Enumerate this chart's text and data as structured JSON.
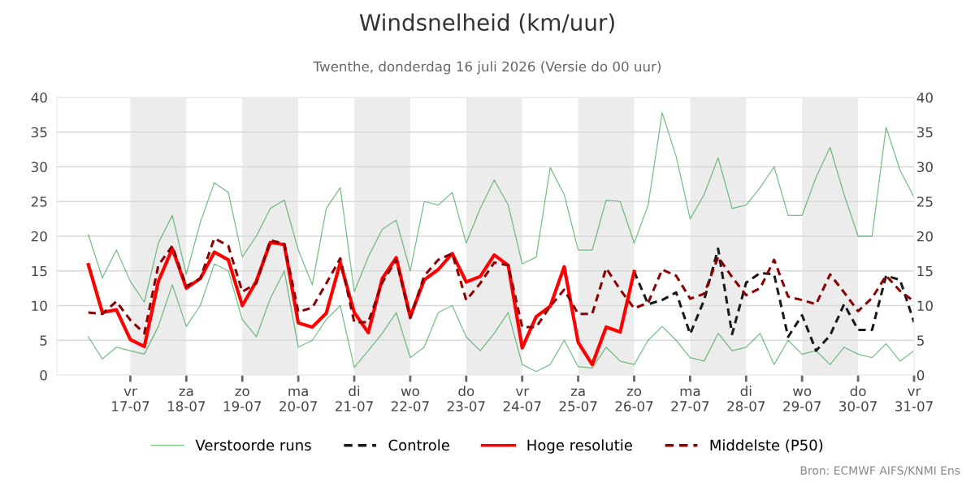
{
  "chart_data": {
    "type": "line",
    "title": "Windsnelheid (km/uur)",
    "subtitle": "Twenthe, donderdag 16 juli 2026 (Versie do 00 uur)",
    "x": [
      "2026-07-16T06:00",
      "2026-07-16T12:00",
      "2026-07-16T18:00",
      "2026-07-17T00:00",
      "2026-07-17T06:00",
      "2026-07-17T12:00",
      "2026-07-17T18:00",
      "2026-07-18T00:00",
      "2026-07-18T06:00",
      "2026-07-18T12:00",
      "2026-07-18T18:00",
      "2026-07-19T00:00",
      "2026-07-19T06:00",
      "2026-07-19T12:00",
      "2026-07-19T18:00",
      "2026-07-20T00:00",
      "2026-07-20T06:00",
      "2026-07-20T12:00",
      "2026-07-20T18:00",
      "2026-07-21T00:00",
      "2026-07-21T06:00",
      "2026-07-21T12:00",
      "2026-07-21T18:00",
      "2026-07-22T00:00",
      "2026-07-22T06:00",
      "2026-07-22T12:00",
      "2026-07-22T18:00",
      "2026-07-23T00:00",
      "2026-07-23T06:00",
      "2026-07-23T12:00",
      "2026-07-23T18:00",
      "2026-07-24T00:00",
      "2026-07-24T06:00",
      "2026-07-24T12:00",
      "2026-07-24T18:00",
      "2026-07-25T00:00",
      "2026-07-25T06:00",
      "2026-07-25T12:00",
      "2026-07-25T18:00",
      "2026-07-26T00:00",
      "2026-07-26T06:00",
      "2026-07-26T12:00",
      "2026-07-26T18:00",
      "2026-07-27T00:00",
      "2026-07-27T06:00",
      "2026-07-27T12:00",
      "2026-07-27T18:00",
      "2026-07-28T00:00",
      "2026-07-28T06:00",
      "2026-07-28T12:00",
      "2026-07-28T18:00",
      "2026-07-29T00:00",
      "2026-07-29T06:00",
      "2026-07-29T12:00",
      "2026-07-29T18:00",
      "2026-07-30T00:00",
      "2026-07-30T06:00",
      "2026-07-30T12:00",
      "2026-07-30T18:00",
      "2026-07-31T00:00"
    ],
    "series": [
      {
        "name": "Verstoorde runs",
        "color": "#2e9e44",
        "line_style": "solid",
        "values": [
          20.2,
          14,
          18,
          13.5,
          10.5,
          19,
          23,
          14.5,
          22,
          27.7,
          26.3,
          17,
          20,
          24,
          25.2,
          18,
          13,
          24,
          27,
          12,
          17,
          21,
          22.3,
          15,
          25,
          24.5,
          26.3,
          19,
          24,
          28.1,
          24.5,
          16,
          17,
          29.9,
          26,
          18,
          18,
          25.2,
          25,
          19,
          24.5,
          37.8,
          31.5,
          22.5,
          26,
          31.3,
          24,
          24.5,
          27,
          30,
          23,
          23,
          28.5,
          32.8,
          26,
          20,
          20,
          35.7,
          29.5,
          25.6
        ]
      },
      {
        "color": "#2e9e44",
        "line_style": "solid",
        "values": [
          5.5,
          2.3,
          4,
          3.5,
          3,
          7,
          13,
          7,
          10,
          16,
          15,
          8,
          5.5,
          11,
          15,
          4,
          5,
          8,
          10,
          1.1,
          3.5,
          6,
          9,
          2.5,
          4,
          9,
          10,
          5.5,
          3.5,
          6,
          9,
          1.5,
          0.5,
          1.5,
          5,
          1.2,
          1,
          4,
          2,
          1.5,
          5,
          7,
          5,
          2.5,
          2,
          6,
          3.5,
          4,
          6,
          1.5,
          5,
          3,
          3.5,
          1.5,
          4,
          3,
          2.5,
          4.5,
          2,
          3.5
        ]
      },
      {
        "name": "Controle",
        "color": "#1a1a1a",
        "line_style": "dashed",
        "values": [
          null,
          null,
          null,
          null,
          null,
          null,
          null,
          null,
          null,
          null,
          null,
          null,
          null,
          null,
          null,
          null,
          null,
          null,
          null,
          null,
          null,
          null,
          null,
          null,
          null,
          null,
          null,
          null,
          null,
          null,
          null,
          null,
          null,
          null,
          null,
          null,
          null,
          null,
          null,
          14.9,
          10.2,
          10.8,
          11.9,
          5.9,
          10.8,
          18.2,
          5.9,
          13.3,
          14.7,
          14.5,
          5.5,
          8.6,
          3.5,
          5.7,
          10.2,
          6.5,
          6.5,
          14.3,
          13.7,
          7.6
        ]
      },
      {
        "name": "Hoge resolutie",
        "color": "#ff0000",
        "line_style": "solid",
        "values": [
          15.9,
          9.0,
          9.4,
          5.1,
          4.1,
          13.5,
          18.2,
          12.5,
          13.9,
          17.7,
          16.6,
          10.0,
          13.5,
          19.1,
          18.8,
          7.5,
          6.9,
          8.9,
          16.2,
          9.0,
          6.1,
          13.9,
          16.9,
          8.4,
          13.7,
          15.2,
          17.5,
          13.4,
          14.2,
          17.3,
          15.8,
          3.9,
          8.4,
          9.9,
          15.6,
          4.7,
          1.5,
          6.9,
          6.2,
          14.9,
          null,
          null,
          null,
          null,
          null,
          null,
          null,
          null,
          null,
          null,
          null,
          null,
          null,
          null,
          null,
          null,
          null,
          null,
          null,
          null
        ]
      },
      {
        "name": "Middelste (P50)",
        "color": "#8b0000",
        "line_style": "dashed",
        "values": [
          9.0,
          8.8,
          10.6,
          7.9,
          6.0,
          15.8,
          18.6,
          12.8,
          13.9,
          19.7,
          18.6,
          12.0,
          13.2,
          19.4,
          18.9,
          9.1,
          9.7,
          13.2,
          16.8,
          7.6,
          7.6,
          13.3,
          16.6,
          8.2,
          14.3,
          16.6,
          17.5,
          10.8,
          13.2,
          16.2,
          15.8,
          6.9,
          6.9,
          9.9,
          12.3,
          8.8,
          8.8,
          15.4,
          12.3,
          9.6,
          10.4,
          15.2,
          14.3,
          11.0,
          11.7,
          17.0,
          14.1,
          11.5,
          12.5,
          16.6,
          11.3,
          10.8,
          10.2,
          14.5,
          11.9,
          9.2,
          11.1,
          14.3,
          12.1,
          10.6
        ]
      }
    ],
    "xlim": [
      "2026-07-15T16:30",
      "2026-07-31T00:00"
    ],
    "xticks": [
      {
        "value": "2026-07-17",
        "label": "vr\n17-07"
      },
      {
        "value": "2026-07-18",
        "label": "za\n18-07"
      },
      {
        "value": "2026-07-19",
        "label": "zo\n19-07"
      },
      {
        "value": "2026-07-20",
        "label": "ma\n20-07"
      },
      {
        "value": "2026-07-21",
        "label": "di\n21-07"
      },
      {
        "value": "2026-07-22",
        "label": "wo\n22-07"
      },
      {
        "value": "2026-07-23",
        "label": "do\n23-07"
      },
      {
        "value": "2026-07-24",
        "label": "vr\n24-07"
      },
      {
        "value": "2026-07-25",
        "label": "za\n25-07"
      },
      {
        "value": "2026-07-26",
        "label": "zo\n26-07"
      },
      {
        "value": "2026-07-27",
        "label": "ma\n27-07"
      },
      {
        "value": "2026-07-28",
        "label": "di\n28-07"
      },
      {
        "value": "2026-07-29",
        "label": "wo\n29-07"
      },
      {
        "value": "2026-07-30",
        "label": "do\n30-07"
      },
      {
        "value": "2026-07-31",
        "label": "vr\n31-07"
      }
    ],
    "ylim": [
      0,
      40
    ],
    "yticks": [
      0,
      5,
      10,
      15,
      20,
      25,
      30,
      35,
      40
    ],
    "y2lim": [
      0,
      40
    ],
    "y2ticks": [
      0,
      5,
      10,
      15,
      20,
      25,
      30,
      35,
      40
    ],
    "bands": [
      {
        "axis": "x",
        "from": "2026-07-17",
        "to": "2026-07-18",
        "color": "#ececec"
      },
      {
        "axis": "x",
        "from": "2026-07-19",
        "to": "2026-07-20",
        "color": "#ececec"
      },
      {
        "axis": "x",
        "from": "2026-07-21",
        "to": "2026-07-22",
        "color": "#ececec"
      },
      {
        "axis": "x",
        "from": "2026-07-23",
        "to": "2026-07-24",
        "color": "#ececec"
      },
      {
        "axis": "x",
        "from": "2026-07-25",
        "to": "2026-07-26",
        "color": "#ececec"
      },
      {
        "axis": "x",
        "from": "2026-07-27",
        "to": "2026-07-28",
        "color": "#ececec"
      },
      {
        "axis": "x",
        "from": "2026-07-29",
        "to": "2026-07-30",
        "color": "#ececec"
      }
    ],
    "grid": "y",
    "legend": "bottom",
    "marker": "none",
    "annotations": [
      "Bron: ECMWF AIFS/KNMI Ens"
    ]
  }
}
